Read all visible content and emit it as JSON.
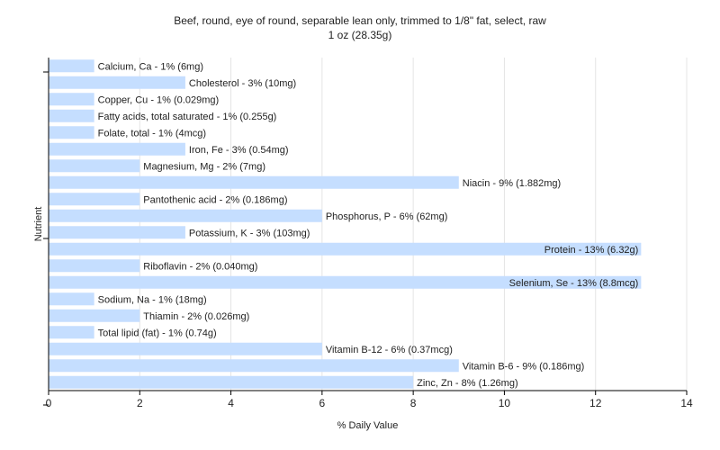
{
  "chart_data": {
    "type": "bar",
    "orientation": "horizontal",
    "title": "Beef, round, eye of round, separable lean only, trimmed to 1/8\" fat, select, raw",
    "subtitle": "1 oz (28.35g)",
    "xlabel": "% Daily Value",
    "ylabel": "Nutrient",
    "xlim": [
      0,
      14
    ],
    "xticks": [
      0,
      2,
      4,
      6,
      8,
      10,
      12,
      14
    ],
    "grid": true,
    "bar_color": "#c5deff",
    "categories": [
      "Calcium, Ca",
      "Cholesterol",
      "Copper, Cu",
      "Fatty acids, total saturated",
      "Folate, total",
      "Iron, Fe",
      "Magnesium, Mg",
      "Niacin",
      "Pantothenic acid",
      "Phosphorus, P",
      "Potassium, K",
      "Protein",
      "Riboflavin",
      "Selenium, Se",
      "Sodium, Na",
      "Thiamin",
      "Total lipid (fat)",
      "Vitamin B-12",
      "Vitamin B-6",
      "Zinc, Zn"
    ],
    "values": [
      1,
      3,
      1,
      1,
      1,
      3,
      2,
      9,
      2,
      6,
      3,
      13,
      2,
      13,
      1,
      2,
      1,
      6,
      9,
      8
    ],
    "labels": [
      "Calcium, Ca - 1% (6mg)",
      "Cholesterol - 3% (10mg)",
      "Copper, Cu - 1% (0.029mg)",
      "Fatty acids, total saturated - 1% (0.255g)",
      "Folate, total - 1% (4mcg)",
      "Iron, Fe - 3% (0.54mg)",
      "Magnesium, Mg - 2% (7mg)",
      "Niacin - 9% (1.882mg)",
      "Pantothenic acid - 2% (0.186mg)",
      "Phosphorus, P - 6% (62mg)",
      "Potassium, K - 3% (103mg)",
      "Protein - 13% (6.32g)",
      "Riboflavin - 2% (0.040mg)",
      "Selenium, Se - 13% (8.8mcg)",
      "Sodium, Na - 1% (18mg)",
      "Thiamin - 2% (0.026mg)",
      "Total lipid (fat) - 1% (0.74g)",
      "Vitamin B-12 - 6% (0.37mcg)",
      "Vitamin B-6 - 9% (0.186mg)",
      "Zinc, Zn - 8% (1.26mg)"
    ]
  }
}
